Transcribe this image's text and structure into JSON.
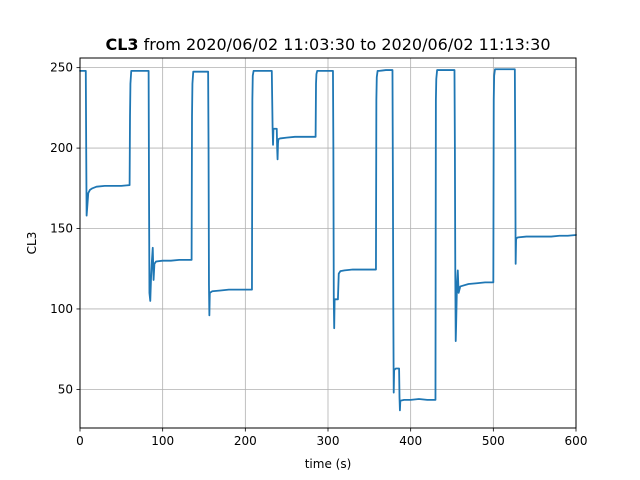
{
  "title": {
    "bold": "CL3",
    "rest": " from 2020/06/02 11:03:30 to 2020/06/02 11:13:30"
  },
  "chart_data": {
    "type": "line",
    "xlabel": "time (s)",
    "ylabel": "CL3",
    "xlim": [
      0,
      600
    ],
    "ylim": [
      26,
      256
    ],
    "xticks": [
      0,
      100,
      200,
      300,
      400,
      500,
      600
    ],
    "yticks": [
      50,
      100,
      150,
      200,
      250
    ],
    "grid": true,
    "line_color": "#1f77b4",
    "series": [
      {
        "x": [
          0,
          7,
          7.5,
          8,
          9,
          10,
          12,
          15,
          20,
          30,
          40,
          50,
          60,
          60.5,
          61,
          62,
          65,
          70,
          80,
          83,
          83.5,
          84,
          85,
          86,
          87,
          88,
          89,
          90,
          92,
          100,
          110,
          120,
          130,
          135,
          135.5,
          136,
          137,
          140,
          150,
          155,
          155.5,
          156,
          156.5,
          157,
          160,
          170,
          180,
          190,
          200,
          208,
          208.5,
          209,
          210,
          215,
          225,
          232,
          232.5,
          233,
          233.5,
          234,
          238,
          238.5,
          239,
          239.5,
          240,
          242,
          250,
          260,
          270,
          285,
          285.5,
          286,
          287,
          290,
          300,
          306,
          306.5,
          307,
          307.5,
          308,
          312,
          313,
          315,
          320,
          330,
          340,
          350,
          358,
          358.5,
          359,
          360,
          362,
          370,
          378,
          378.5,
          379,
          379.5,
          380,
          382,
          385,
          386,
          386.5,
          387,
          387.5,
          388,
          392,
          400,
          410,
          420,
          430,
          430.5,
          431,
          432,
          435,
          440,
          450,
          453,
          453.5,
          454,
          454.5,
          455,
          456,
          457,
          458,
          460,
          470,
          480,
          490,
          500,
          500.5,
          501,
          502,
          505,
          510,
          520,
          526,
          526.5,
          527,
          527.5,
          528,
          530,
          540,
          550,
          560,
          570,
          580,
          590,
          600
        ],
        "y": [
          248,
          248,
          200,
          158,
          165,
          172,
          174,
          175,
          176,
          176.5,
          176.5,
          176.5,
          177,
          220,
          240,
          248,
          248,
          248,
          248,
          248,
          170,
          110,
          105,
          120,
          130,
          138,
          118,
          128,
          129.5,
          130,
          130,
          130.5,
          130.5,
          130.5,
          220,
          240,
          247.5,
          247.5,
          247.5,
          247.5,
          200,
          115,
          96,
          110,
          111,
          111.5,
          112,
          112,
          112,
          112,
          230,
          245,
          248,
          248,
          248,
          248,
          230,
          212,
          202,
          212,
          212,
          200,
          193,
          203,
          205.5,
          206,
          206.5,
          207,
          207,
          207,
          240,
          246,
          248,
          248,
          248,
          248,
          200,
          105,
          88,
          106,
          106,
          122,
          123.5,
          124,
          124.5,
          124.5,
          124.5,
          124.5,
          230,
          244,
          248,
          248,
          248.5,
          248.5,
          180,
          100,
          48,
          62,
          63,
          63,
          63,
          45,
          37,
          43,
          43,
          43.5,
          43.5,
          44,
          43.5,
          43.5,
          230,
          243,
          248.5,
          248.5,
          248.5,
          248.5,
          248.5,
          200,
          120,
          80,
          90,
          115,
          124,
          110,
          114,
          115.5,
          116,
          116.5,
          116.5,
          230,
          245,
          249,
          249,
          249,
          249,
          249,
          200,
          128,
          143,
          144,
          144.5,
          145,
          145,
          145,
          145,
          145.5,
          145.5,
          146
        ]
      }
    ]
  }
}
